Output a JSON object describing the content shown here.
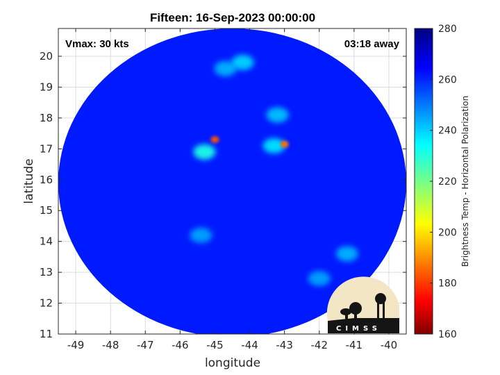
{
  "chart_data": {
    "type": "heatmap",
    "title": "Fifteen: 16-Sep-2023 00:00:00",
    "xlabel": "longitude",
    "ylabel": "latitude",
    "xlim": [
      -49.5,
      -39.5
    ],
    "ylim": [
      11,
      20.9
    ],
    "xticks": [
      -49,
      -48,
      -47,
      -46,
      -45,
      -44,
      -43,
      -42,
      -41,
      -40
    ],
    "yticks": [
      11,
      12,
      13,
      14,
      15,
      16,
      17,
      18,
      19,
      20
    ],
    "grid": true,
    "annotations": {
      "top_left": "Vmax: 30 kts",
      "top_right": "03:18 away"
    },
    "colorbar": {
      "label": "Brightness Temp - Horizontal Polarization",
      "range": [
        160,
        280
      ],
      "ticks": [
        160,
        180,
        200,
        220,
        240,
        260,
        280
      ],
      "colormap": "jet"
    },
    "swath": {
      "center_lon": -44.5,
      "center_lat": 15.9,
      "radius_lon": 5.0,
      "radius_lat": 5.0
    },
    "background_value": 262,
    "features": [
      {
        "lon": -45.0,
        "lat": 17.3,
        "value": 185
      },
      {
        "lon": -45.3,
        "lat": 16.9,
        "value": 232
      },
      {
        "lon": -43.0,
        "lat": 17.15,
        "value": 188
      },
      {
        "lon": -43.3,
        "lat": 17.1,
        "value": 238
      },
      {
        "lon": -44.2,
        "lat": 19.8,
        "value": 240
      },
      {
        "lon": -43.2,
        "lat": 18.1,
        "value": 242
      },
      {
        "lon": -41.2,
        "lat": 13.6,
        "value": 244
      },
      {
        "lon": -45.4,
        "lat": 14.2,
        "value": 246
      },
      {
        "lon": -42.0,
        "lat": 12.8,
        "value": 246
      },
      {
        "lon": -44.7,
        "lat": 19.6,
        "value": 244
      }
    ],
    "logo_text": "CIMSS"
  },
  "colors": {
    "axis": "#262626",
    "grid": "#dcdcdc",
    "background_field": "#1040ff"
  }
}
